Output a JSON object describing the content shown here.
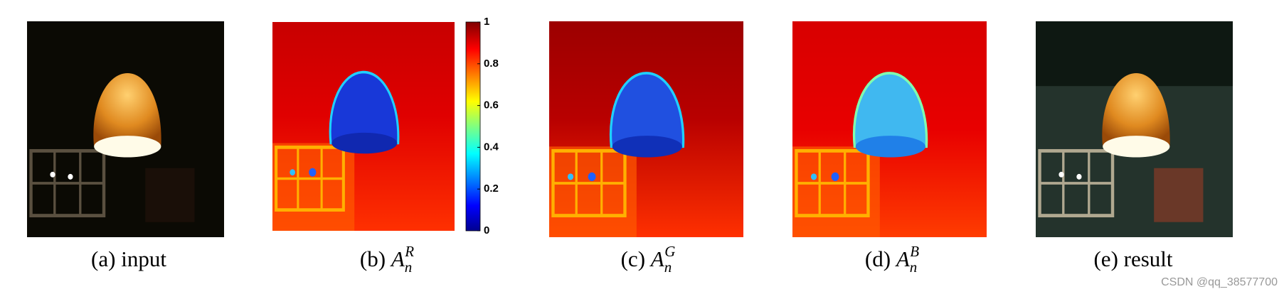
{
  "panels": [
    {
      "caption": "(a) input"
    },
    {
      "prefix": "(b)",
      "symbol": "A",
      "subscript": "n",
      "superscript": "R"
    },
    {
      "prefix": "(c)",
      "symbol": "A",
      "subscript": "n",
      "superscript": "G"
    },
    {
      "prefix": "(d)",
      "symbol": "A",
      "subscript": "n",
      "superscript": "B"
    },
    {
      "caption": "(e) result"
    }
  ],
  "colorbar": {
    "range": [
      0,
      1
    ],
    "ticks": [
      0,
      0.2,
      0.4,
      0.6,
      0.8,
      1
    ]
  },
  "watermark": "CSDN @qq_38577700"
}
